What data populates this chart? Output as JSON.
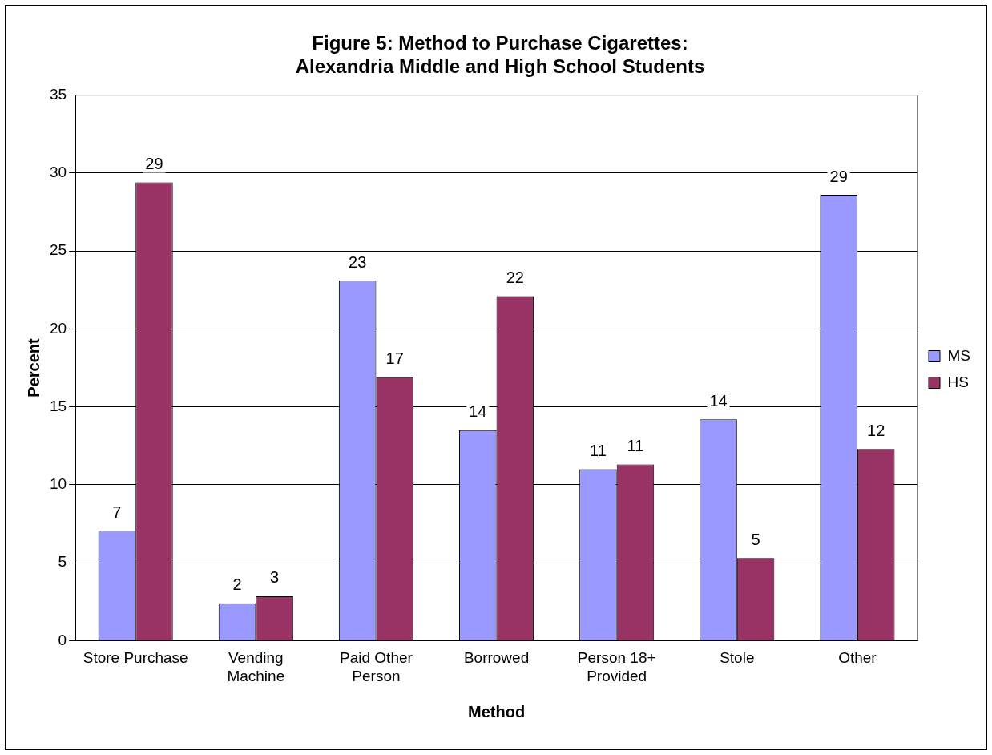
{
  "chart_data": {
    "type": "bar",
    "title": [
      "Figure 5: Method to Purchase Cigarettes:",
      "Alexandria Middle and High School Students"
    ],
    "xlabel": "Method",
    "ylabel": "Percent",
    "categories": [
      "Store Purchase",
      "Vending Machine",
      "Paid Other Person",
      "Borrowed",
      "Person 18+ Provided",
      "Stole",
      "Other"
    ],
    "series": [
      {
        "name": "MS",
        "color": "#9999ff",
        "values": [
          7.05,
          2.4,
          23.1,
          13.5,
          11.0,
          14.2,
          28.6
        ],
        "value_labels": [
          "7",
          "2",
          "23",
          "14",
          "11",
          "14",
          "29"
        ]
      },
      {
        "name": "HS",
        "color": "#993366",
        "values": [
          29.4,
          2.85,
          16.9,
          22.1,
          11.3,
          5.3,
          12.3
        ],
        "value_labels": [
          "29",
          "3",
          "17",
          "22",
          "11",
          "5",
          "12"
        ]
      }
    ],
    "ylim": [
      0,
      35
    ],
    "yticks": [
      0,
      5,
      10,
      15,
      20,
      25,
      30,
      35
    ],
    "grid": "y",
    "legend": "right"
  }
}
